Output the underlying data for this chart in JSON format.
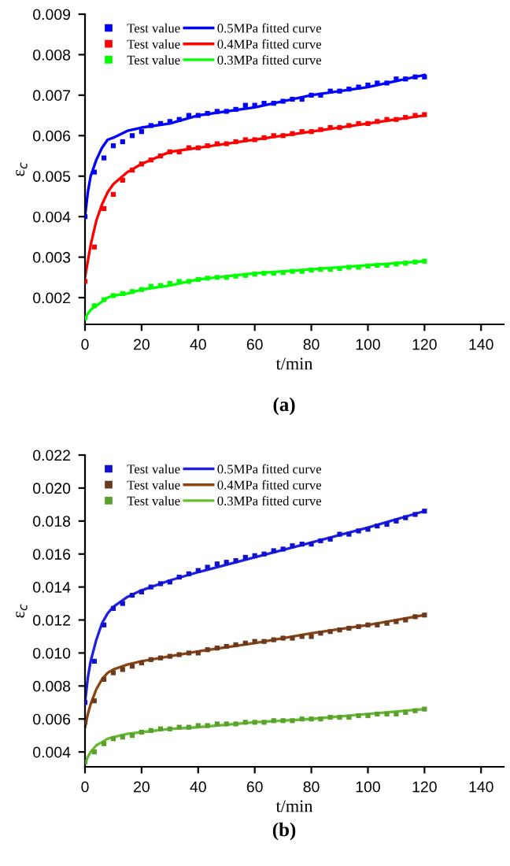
{
  "chart_data": [
    {
      "type": "scatter",
      "xlabel": "t/min",
      "ylabel": "ε$_{c}$",
      "annotations": [
        "(a)"
      ],
      "xlim": [
        0,
        148
      ],
      "xticks": [
        0,
        20,
        40,
        60,
        80,
        100,
        120,
        140
      ],
      "ylim": [
        0.00134,
        0.009
      ],
      "yticks": [
        0.002,
        0.003,
        0.004,
        0.005,
        0.006,
        0.007,
        0.008,
        0.009
      ],
      "legend": "top left",
      "grid": false,
      "x": [
        0,
        3.3,
        6.7,
        10,
        13.3,
        16.7,
        20,
        23.3,
        26.7,
        30,
        33.3,
        36.7,
        40,
        43.3,
        46.7,
        50,
        53.3,
        56.7,
        60,
        63.3,
        66.7,
        70,
        73.3,
        76.7,
        80,
        83.3,
        86.7,
        90,
        93.3,
        96.7,
        100,
        103.3,
        106.7,
        110,
        113.3,
        116.7,
        120
      ],
      "series": [
        {
          "name": "Test value",
          "marker": "square",
          "color": "#0000ff",
          "values": [
            0.004,
            0.0051,
            0.00545,
            0.00575,
            0.00585,
            0.006,
            0.0061,
            0.00625,
            0.0063,
            0.00635,
            0.0064,
            0.0065,
            0.0065,
            0.00655,
            0.0066,
            0.0066,
            0.00665,
            0.00675,
            0.00675,
            0.0068,
            0.0068,
            0.00685,
            0.0069,
            0.0069,
            0.007,
            0.007,
            0.0071,
            0.0071,
            0.00715,
            0.0072,
            0.00725,
            0.0073,
            0.0073,
            0.0074,
            0.0074,
            0.00745,
            0.00745
          ]
        },
        {
          "name": "Test value",
          "marker": "square",
          "color": "#ff0000",
          "values": [
            0.0024,
            0.00325,
            0.0042,
            0.00455,
            0.0049,
            0.00515,
            0.0053,
            0.0054,
            0.0055,
            0.0056,
            0.0056,
            0.0057,
            0.0057,
            0.00575,
            0.0058,
            0.0058,
            0.00585,
            0.0059,
            0.0059,
            0.00595,
            0.006,
            0.006,
            0.00605,
            0.0061,
            0.0061,
            0.00615,
            0.0062,
            0.0062,
            0.00625,
            0.0063,
            0.0063,
            0.00635,
            0.0064,
            0.0064,
            0.00645,
            0.0065,
            0.00652
          ]
        },
        {
          "name": "Test value",
          "marker": "square",
          "color": "#00ff00",
          "values": [
            0.0015,
            0.0018,
            0.00195,
            0.00205,
            0.0021,
            0.00215,
            0.0022,
            0.00228,
            0.0023,
            0.00235,
            0.0024,
            0.0024,
            0.00245,
            0.00248,
            0.0025,
            0.0025,
            0.00253,
            0.00255,
            0.00258,
            0.0026,
            0.0026,
            0.00262,
            0.00265,
            0.00265,
            0.00268,
            0.0027,
            0.0027,
            0.00272,
            0.00275,
            0.00275,
            0.00278,
            0.0028,
            0.0028,
            0.00283,
            0.00285,
            0.00288,
            0.0029
          ]
        },
        {
          "type": "line",
          "name": "0.5MPa fitted curve",
          "color": "#0000ff",
          "x": [
            0,
            1,
            2,
            4,
            6,
            8,
            10,
            15,
            20,
            30,
            40,
            60,
            80,
            100,
            120
          ],
          "values": [
            0.004,
            0.0046,
            0.005,
            0.0054,
            0.0057,
            0.0059,
            0.00595,
            0.00612,
            0.0062,
            0.0063,
            0.0065,
            0.0067,
            0.007,
            0.0072,
            0.0075
          ]
        },
        {
          "type": "line",
          "name": "0.4MPa fitted curve",
          "color": "#ff0000",
          "x": [
            0,
            1,
            2,
            4,
            6,
            8,
            10,
            15,
            20,
            30,
            40,
            60,
            80,
            100,
            120
          ],
          "values": [
            0.0025,
            0.0029,
            0.0033,
            0.0039,
            0.0043,
            0.0046,
            0.0048,
            0.0051,
            0.0053,
            0.0056,
            0.0057,
            0.0059,
            0.0061,
            0.0063,
            0.0065
          ]
        },
        {
          "type": "line",
          "name": "0.3MPa fitted curve",
          "color": "#00ff00",
          "x": [
            0,
            1,
            2,
            4,
            6,
            8,
            10,
            15,
            20,
            30,
            40,
            60,
            80,
            100,
            120
          ],
          "values": [
            0.0015,
            0.0016,
            0.0017,
            0.0018,
            0.0019,
            0.002,
            0.00205,
            0.0021,
            0.0022,
            0.0023,
            0.00245,
            0.0026,
            0.0027,
            0.0028,
            0.0029
          ]
        }
      ]
    },
    {
      "type": "scatter",
      "xlabel": "t/min",
      "ylabel": "ε$_{c}$",
      "annotations": [
        "(b)"
      ],
      "xlim": [
        0,
        148
      ],
      "xticks": [
        0,
        20,
        40,
        60,
        80,
        100,
        120,
        140
      ],
      "ylim": [
        0.0031,
        0.022
      ],
      "yticks": [
        0.004,
        0.006,
        0.008,
        {
          "value": 0.01,
          "label": "0.010"
        },
        0.012,
        0.014,
        0.016,
        0.018,
        {
          "value": 0.02,
          "label": "0.020"
        },
        0.022
      ],
      "legend": "top left",
      "grid": false,
      "x": [
        0,
        3.3,
        6.7,
        10,
        13.3,
        16.7,
        20,
        23.3,
        26.7,
        30,
        33.3,
        36.7,
        40,
        43.3,
        46.7,
        50,
        53.3,
        56.7,
        60,
        63.3,
        66.7,
        70,
        73.3,
        76.7,
        80,
        83.3,
        86.7,
        90,
        93.3,
        96.7,
        100,
        103.3,
        106.7,
        110,
        113.3,
        116.7,
        120
      ],
      "series": [
        {
          "name": "Test value",
          "marker": "square",
          "color": "#1010d0",
          "values": [
            0.007,
            0.0095,
            0.0117,
            0.0127,
            0.013,
            0.0135,
            0.0137,
            0.014,
            0.0142,
            0.0143,
            0.0146,
            0.0148,
            0.015,
            0.0152,
            0.0154,
            0.0155,
            0.0156,
            0.0158,
            0.0159,
            0.016,
            0.0162,
            0.0163,
            0.0165,
            0.0166,
            0.0166,
            0.0168,
            0.0169,
            0.0172,
            0.0172,
            0.0174,
            0.0175,
            0.0177,
            0.0178,
            0.018,
            0.0182,
            0.0184,
            0.0186
          ]
        },
        {
          "name": "Test value",
          "marker": "square",
          "color": "#6b3a1e",
          "values": [
            0.0058,
            0.0071,
            0.0084,
            0.0088,
            0.009,
            0.0092,
            0.0094,
            0.0096,
            0.0097,
            0.0098,
            0.0099,
            0.01,
            0.01,
            0.0102,
            0.0103,
            0.0104,
            0.0105,
            0.0106,
            0.0107,
            0.0107,
            0.0108,
            0.0109,
            0.0109,
            0.011,
            0.011,
            0.0112,
            0.0113,
            0.0114,
            0.0115,
            0.0116,
            0.0117,
            0.0117,
            0.0118,
            0.0119,
            0.012,
            0.0122,
            0.0123
          ]
        },
        {
          "name": "Test value",
          "marker": "square",
          "color": "#5aa02c",
          "values": [
            0.0034,
            0.004,
            0.0045,
            0.0048,
            0.0049,
            0.005,
            0.0052,
            0.0053,
            0.0054,
            0.0054,
            0.0055,
            0.0055,
            0.0056,
            0.0056,
            0.0057,
            0.0057,
            0.0057,
            0.0058,
            0.0058,
            0.0058,
            0.0059,
            0.0059,
            0.0059,
            0.006,
            0.006,
            0.006,
            0.0061,
            0.0061,
            0.0061,
            0.0062,
            0.0062,
            0.0063,
            0.0063,
            0.0063,
            0.0064,
            0.0065,
            0.0066
          ]
        },
        {
          "type": "line",
          "name": "0.5MPa fitted curve",
          "color": "#2020e0",
          "x": [
            0,
            1,
            2,
            4,
            6,
            8,
            10,
            15,
            20,
            30,
            40,
            60,
            80,
            100,
            120
          ],
          "values": [
            0.007,
            0.0085,
            0.0095,
            0.0108,
            0.0118,
            0.0124,
            0.0128,
            0.0134,
            0.0138,
            0.0144,
            0.0149,
            0.0158,
            0.0167,
            0.0176,
            0.0186
          ]
        },
        {
          "type": "line",
          "name": "0.4MPa fitted curve",
          "color": "#8b4513",
          "x": [
            0,
            1,
            2,
            4,
            6,
            8,
            10,
            15,
            20,
            30,
            40,
            60,
            80,
            100,
            120
          ],
          "values": [
            0.0055,
            0.0063,
            0.0069,
            0.0078,
            0.0084,
            0.0088,
            0.009,
            0.0093,
            0.0095,
            0.0098,
            0.0101,
            0.0106,
            0.0112,
            0.0117,
            0.0123
          ]
        },
        {
          "type": "line",
          "name": "0.3MPa fitted curve",
          "color": "#66bb33",
          "x": [
            0,
            1,
            2,
            4,
            6,
            8,
            10,
            15,
            20,
            30,
            40,
            60,
            80,
            100,
            120
          ],
          "values": [
            0.0033,
            0.0037,
            0.004,
            0.0044,
            0.0046,
            0.0048,
            0.0049,
            0.0051,
            0.0052,
            0.0054,
            0.0055,
            0.0058,
            0.006,
            0.0063,
            0.0066
          ]
        }
      ]
    }
  ]
}
